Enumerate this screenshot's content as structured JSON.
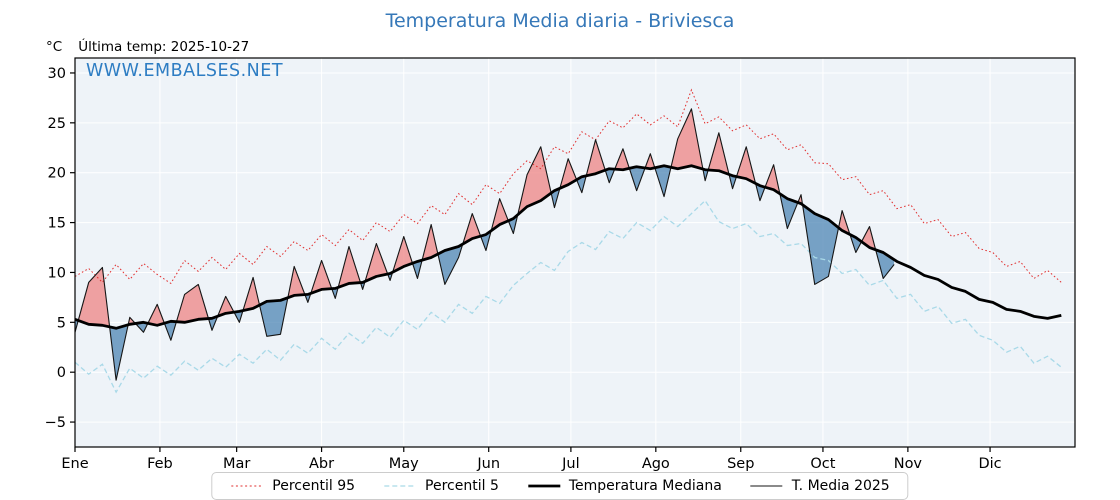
{
  "header": {
    "title": "Temperatura Media diaria - Briviesca",
    "unit": "°C",
    "last_temp": "Última temp: 2025-10-27"
  },
  "watermark": {
    "text": "WWW.EMBALSES.NET"
  },
  "colors": {
    "title": "#3678b8",
    "watermark": "#2e7dc3",
    "text": "#000000",
    "legend_border": "#cccccc"
  },
  "legend": {
    "items": [
      {
        "key": "p95",
        "label": "Percentil 95",
        "color": "#e12f2f",
        "width": 1.1,
        "dash": "2 2.6"
      },
      {
        "key": "p5",
        "label": "Percentil 5",
        "color": "#a9d9e8",
        "width": 1.3,
        "dash": "5 3"
      },
      {
        "key": "median",
        "label": "Temperatura Mediana",
        "color": "#000000",
        "width": 2.8,
        "dash": ""
      },
      {
        "key": "t2025",
        "label": "T. Media 2025",
        "color": "#161616",
        "width": 1.1,
        "dash": ""
      }
    ]
  },
  "chart_data": {
    "type": "line",
    "title": "Temperatura Media diaria - Briviesca",
    "xlabel": "",
    "ylabel": "°C",
    "ylim": [
      -7.5,
      31.5
    ],
    "yticks": {
      "values": [
        30,
        25,
        20,
        15,
        10,
        5,
        0,
        -5
      ],
      "labels": [
        "30",
        "25",
        "20",
        "15",
        "10",
        "5",
        "0",
        "−5"
      ]
    },
    "months": {
      "labels": [
        "Ene",
        "Feb",
        "Mar",
        "Abr",
        "May",
        "Jun",
        "Jul",
        "Ago",
        "Sep",
        "Oct",
        "Nov",
        "Dic"
      ],
      "start_days": [
        1,
        32,
        60,
        91,
        121,
        152,
        182,
        213,
        244,
        274,
        305,
        335
      ]
    },
    "grid": true,
    "legend_position": "bottom",
    "colors": {
      "plot_bg": "#eef3f8",
      "grid": "#ffffff",
      "axis": "#000000"
    },
    "fills": {
      "above_color": "#ee8484",
      "below_color": "#4e86b4",
      "opacity": 0.75
    },
    "days": [
      1,
      6,
      11,
      16,
      21,
      26,
      31,
      36,
      41,
      46,
      51,
      56,
      61,
      66,
      71,
      76,
      81,
      86,
      91,
      96,
      101,
      106,
      111,
      116,
      121,
      126,
      131,
      136,
      141,
      146,
      151,
      156,
      161,
      166,
      171,
      176,
      181,
      186,
      191,
      196,
      201,
      206,
      211,
      216,
      221,
      226,
      231,
      236,
      241,
      246,
      251,
      256,
      261,
      266,
      271,
      276,
      281,
      286,
      291,
      296,
      301,
      306,
      311,
      316,
      321,
      326,
      331,
      336,
      341,
      346,
      351,
      356,
      361
    ],
    "series": {
      "percentil95": {
        "name": "Percentil 95",
        "color": "#e12f2f",
        "width": 1.0,
        "dash": "1.6 2.4",
        "values": [
          9.6,
          10.4,
          9.0,
          10.8,
          9.3,
          10.9,
          9.8,
          8.9,
          11.2,
          10.1,
          11.5,
          10.3,
          11.9,
          10.8,
          12.6,
          11.6,
          13.1,
          12.2,
          13.8,
          12.7,
          14.3,
          13.2,
          15.0,
          14.1,
          15.8,
          14.9,
          16.7,
          15.8,
          17.9,
          16.8,
          18.8,
          17.9,
          19.9,
          21.2,
          20.4,
          22.6,
          21.9,
          24.1,
          23.3,
          25.2,
          24.5,
          25.9,
          24.8,
          25.7,
          24.6,
          28.3,
          24.9,
          25.6,
          24.2,
          24.8,
          23.4,
          23.9,
          22.3,
          22.8,
          21.0,
          20.9,
          19.3,
          19.6,
          17.8,
          18.2,
          16.4,
          16.8,
          14.9,
          15.3,
          13.6,
          14.0,
          12.4,
          12.0,
          10.6,
          11.1,
          9.4,
          10.2,
          9.0
        ]
      },
      "percentil5": {
        "name": "Percentil 5",
        "color": "#a9d9e8",
        "width": 1.3,
        "dash": "5 3",
        "values": [
          1.0,
          -0.2,
          0.8,
          -2.0,
          0.4,
          -0.6,
          0.6,
          -0.3,
          1.1,
          0.2,
          1.4,
          0.5,
          1.8,
          0.9,
          2.3,
          1.2,
          2.8,
          1.9,
          3.4,
          2.3,
          3.9,
          2.9,
          4.5,
          3.5,
          5.2,
          4.3,
          6.0,
          5.0,
          6.8,
          5.9,
          7.6,
          6.9,
          8.7,
          9.9,
          11.0,
          10.2,
          12.1,
          13.0,
          12.3,
          14.1,
          13.4,
          15.0,
          14.2,
          15.6,
          14.6,
          15.9,
          17.2,
          15.1,
          14.4,
          14.9,
          13.6,
          13.9,
          12.7,
          12.9,
          11.5,
          11.2,
          9.9,
          10.3,
          8.7,
          9.2,
          7.4,
          7.8,
          6.1,
          6.6,
          4.9,
          5.3,
          3.7,
          3.2,
          2.0,
          2.6,
          0.9,
          1.6,
          0.5
        ]
      },
      "mediana": {
        "name": "Temperatura Mediana",
        "color": "#000000",
        "width": 2.8,
        "dash": "",
        "values": [
          5.3,
          4.8,
          4.7,
          4.4,
          4.8,
          5.0,
          4.7,
          5.1,
          5.0,
          5.3,
          5.4,
          5.9,
          6.1,
          6.4,
          7.1,
          7.2,
          7.7,
          7.8,
          8.3,
          8.4,
          8.9,
          9.0,
          9.6,
          9.9,
          10.6,
          11.1,
          11.5,
          12.2,
          12.6,
          13.4,
          13.8,
          14.8,
          15.4,
          16.6,
          17.2,
          18.2,
          18.8,
          19.6,
          19.9,
          20.4,
          20.3,
          20.6,
          20.4,
          20.7,
          20.4,
          20.7,
          20.3,
          20.2,
          19.7,
          19.4,
          18.7,
          18.3,
          17.4,
          16.9,
          15.9,
          15.3,
          14.2,
          13.5,
          12.5,
          12.0,
          11.1,
          10.5,
          9.7,
          9.3,
          8.5,
          8.1,
          7.3,
          7.0,
          6.3,
          6.1,
          5.6,
          5.4,
          5.7
        ]
      },
      "t2025": {
        "name": "T. Media 2025",
        "color": "#161616",
        "width": 1.1,
        "dash": "",
        "x": [
          1,
          6,
          11,
          16,
          21,
          26,
          31,
          36,
          41,
          46,
          51,
          56,
          61,
          66,
          71,
          76,
          81,
          86,
          91,
          96,
          101,
          106,
          111,
          116,
          121,
          126,
          131,
          136,
          141,
          146,
          151,
          156,
          161,
          166,
          171,
          176,
          181,
          186,
          191,
          196,
          201,
          206,
          211,
          216,
          221,
          226,
          231,
          236,
          241,
          246,
          251,
          256,
          261,
          266,
          271,
          276,
          281,
          286,
          291,
          296,
          300
        ],
        "values": [
          4.0,
          9.0,
          10.5,
          -0.8,
          5.5,
          4.0,
          6.8,
          3.2,
          7.8,
          8.8,
          4.2,
          7.6,
          5.0,
          9.5,
          3.6,
          3.8,
          10.6,
          7.0,
          11.2,
          7.4,
          12.6,
          8.3,
          12.9,
          9.2,
          13.6,
          9.4,
          14.8,
          8.8,
          11.5,
          15.9,
          12.2,
          17.4,
          13.9,
          19.8,
          22.6,
          16.5,
          21.4,
          18.0,
          23.3,
          19.0,
          22.4,
          18.2,
          21.9,
          17.6,
          23.4,
          26.4,
          19.2,
          24.0,
          18.4,
          22.6,
          17.2,
          20.8,
          14.4,
          17.8,
          8.8,
          9.6,
          16.2,
          12.0,
          14.6,
          9.4,
          10.8
        ]
      }
    }
  }
}
